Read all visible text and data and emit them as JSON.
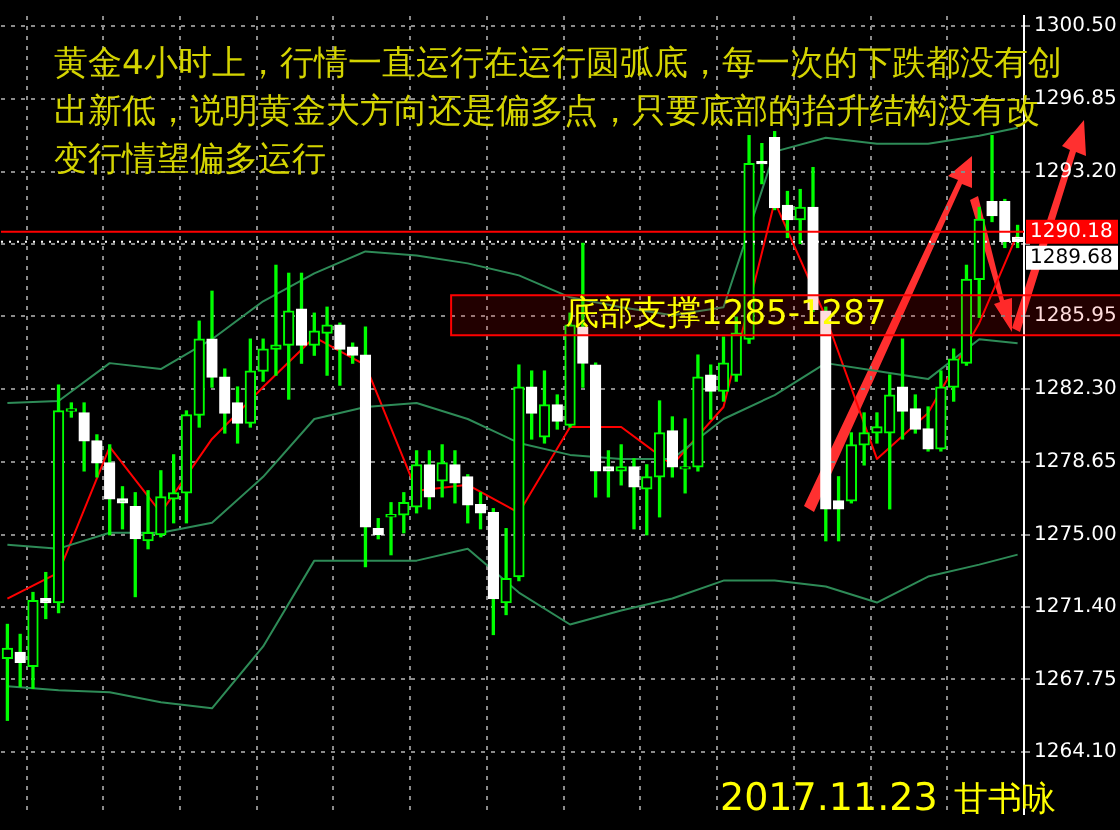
{
  "chart_data": {
    "type": "candlestick",
    "title": "黄金4小时上，行情一直运行在运行圆弧底，每一次的下跌都没有创出新低，说明黄金大方向还是偏多点，只要底部的抬升结构没有改变行情望偏多运行",
    "annotations": [
      "2017.11.23",
      "甘书咏"
    ],
    "categories": [
      null,
      null,
      null,
      null,
      null,
      null,
      null,
      null,
      null,
      null,
      null,
      null,
      null,
      null,
      null,
      null,
      null,
      null,
      null,
      null,
      null,
      null,
      null,
      null,
      null,
      null,
      null,
      null,
      null,
      null,
      null,
      null,
      null,
      null,
      null,
      null,
      null,
      null,
      null,
      null,
      null,
      null,
      null,
      null,
      null,
      null,
      null,
      null,
      null,
      null,
      null,
      null,
      null,
      null,
      null,
      null,
      null,
      null,
      null,
      null,
      null,
      null,
      null,
      null,
      null,
      null,
      null,
      null,
      null,
      null,
      null,
      null,
      null,
      null,
      null,
      null,
      null,
      null,
      null,
      null
    ],
    "color": "#00ff00",
    "colors": [
      "#00ff00",
      "#ffffff",
      "#00ff00",
      "#ffffff",
      "#00ff00",
      "#00ff00",
      "#ffffff",
      "#ffffff",
      "#ffffff",
      "#ffffff",
      "#ffffff",
      "#00ff00",
      "#00ff00",
      "#00ff00",
      "#00ff00",
      "#00ff00",
      "#ffffff",
      "#ffffff",
      "#ffffff",
      "#00ff00",
      "#00ff00",
      "#00ff00",
      "#00ff00",
      "#ffffff",
      "#00ff00",
      "#00ff00",
      "#ffffff",
      "#ffffff",
      "#ffffff",
      "#ffffff",
      "#00ff00",
      "#00ff00",
      "#00ff00",
      "#ffffff",
      "#00ff00",
      "#ffffff",
      "#ffffff",
      "#ffffff",
      "#ffffff",
      "#00ff00",
      "#00ff00",
      "#ffffff",
      "#00ff00",
      "#ffffff",
      "#00ff00",
      "#ffffff",
      "#ffffff",
      "#ffffff",
      "#00ff00",
      "#ffffff",
      "#00ff00",
      "#00ff00",
      "#ffffff",
      "#00ff00",
      "#00ff00",
      "#ffffff",
      "#00ff00",
      "#00ff00",
      "#00ff00",
      "#ffffff",
      "#ffffff",
      "#ffffff",
      "#00ff00",
      "#ffffff",
      "#ffffff",
      "#ffffff",
      "#00ff00",
      "#00ff00",
      "#00ff00",
      "#00ff00",
      "#ffffff",
      "#ffffff",
      "#ffffff",
      "#00ff00",
      "#00ff00",
      "#00ff00",
      "#00ff00",
      "#ffffff",
      "#ffffff",
      "#ffffff"
    ],
    "ohlc": [
      [
        1268.8,
        1270.5,
        1265.7,
        1269.3
      ],
      [
        1269.1,
        1270.0,
        1267.4,
        1268.6
      ],
      [
        1268.4,
        1272.1,
        1267.3,
        1271.7
      ],
      [
        1271.8,
        1273.1,
        1270.8,
        1271.6
      ],
      [
        1271.6,
        1282.5,
        1271.1,
        1281.2
      ],
      [
        1281.2,
        1281.6,
        1280.9,
        1281.3
      ],
      [
        1281.1,
        1281.6,
        1278.2,
        1279.7
      ],
      [
        1279.7,
        1280.0,
        1277.9,
        1278.6
      ],
      [
        1278.6,
        1279.5,
        1275.0,
        1276.8
      ],
      [
        1276.8,
        1277.4,
        1275.3,
        1276.6
      ],
      [
        1276.4,
        1277.1,
        1271.9,
        1274.8
      ],
      [
        1274.7,
        1277.2,
        1274.3,
        1275.1
      ],
      [
        1275.0,
        1278.2,
        1274.9,
        1276.9
      ],
      [
        1276.8,
        1279.0,
        1275.6,
        1277.1
      ],
      [
        1277.1,
        1281.2,
        1275.6,
        1281.0
      ],
      [
        1281.0,
        1285.7,
        1280.4,
        1284.8
      ],
      [
        1284.8,
        1287.2,
        1282.4,
        1282.9
      ],
      [
        1282.9,
        1283.3,
        1280.1,
        1281.1
      ],
      [
        1281.6,
        1282.4,
        1279.6,
        1280.6
      ],
      [
        1280.6,
        1284.8,
        1280.4,
        1283.2
      ],
      [
        1283.2,
        1284.8,
        1282.7,
        1284.3
      ],
      [
        1284.3,
        1288.5,
        1283.0,
        1284.5
      ],
      [
        1284.5,
        1288.1,
        1281.8,
        1286.2
      ],
      [
        1286.3,
        1288.1,
        1283.6,
        1284.5
      ],
      [
        1284.5,
        1286.1,
        1284.0,
        1285.2
      ],
      [
        1285.1,
        1286.4,
        1283.0,
        1285.5
      ],
      [
        1285.5,
        1285.6,
        1282.5,
        1284.3
      ],
      [
        1284.4,
        1284.6,
        1283.6,
        1284.0
      ],
      [
        1284.0,
        1285.4,
        1273.4,
        1275.4
      ],
      [
        1275.3,
        1275.8,
        1274.8,
        1275.0
      ],
      [
        1275.9,
        1276.6,
        1274.0,
        1276.0
      ],
      [
        1276.0,
        1277.1,
        1275.1,
        1276.6
      ],
      [
        1276.4,
        1279.2,
        1276.1,
        1278.5
      ],
      [
        1278.5,
        1279.2,
        1276.3,
        1276.9
      ],
      [
        1277.7,
        1279.5,
        1276.9,
        1278.6
      ],
      [
        1278.5,
        1279.2,
        1276.6,
        1277.6
      ],
      [
        1277.9,
        1278.0,
        1275.6,
        1276.5
      ],
      [
        1276.5,
        1277.1,
        1275.3,
        1276.1
      ],
      [
        1276.1,
        1276.3,
        1270.0,
        1271.8
      ],
      [
        1271.6,
        1275.3,
        1271.0,
        1272.8
      ],
      [
        1272.9,
        1283.5,
        1272.7,
        1282.4
      ],
      [
        1282.4,
        1283.2,
        1279.8,
        1281.1
      ],
      [
        1279.9,
        1283.2,
        1279.6,
        1281.5
      ],
      [
        1281.5,
        1282.0,
        1280.3,
        1280.7
      ],
      [
        1280.5,
        1286.1,
        1280.4,
        1285.5
      ],
      [
        1285.4,
        1289.6,
        1282.4,
        1283.6
      ],
      [
        1283.5,
        1283.6,
        1276.9,
        1278.2
      ],
      [
        1278.4,
        1279.2,
        1276.9,
        1278.2
      ],
      [
        1278.2,
        1279.5,
        1277.5,
        1278.4
      ],
      [
        1278.4,
        1278.8,
        1275.3,
        1277.4
      ],
      [
        1277.3,
        1278.5,
        1275.0,
        1277.9
      ],
      [
        1277.9,
        1281.7,
        1275.9,
        1280.1
      ],
      [
        1280.2,
        1280.9,
        1277.9,
        1278.4
      ],
      [
        1278.3,
        1280.8,
        1277.1,
        1278.4
      ],
      [
        1278.4,
        1284.0,
        1278.2,
        1282.9
      ],
      [
        1283.0,
        1283.5,
        1280.8,
        1282.2
      ],
      [
        1282.2,
        1284.9,
        1281.7,
        1283.6
      ],
      [
        1283.0,
        1285.9,
        1282.7,
        1285.1
      ],
      [
        1284.8,
        1295.0,
        1284.6,
        1293.6
      ],
      [
        1293.7,
        1294.6,
        1292.6,
        1293.6
      ],
      [
        1294.9,
        1295.2,
        1291.3,
        1291.4
      ],
      [
        1291.5,
        1292.2,
        1289.9,
        1290.8
      ],
      [
        1290.8,
        1292.3,
        1289.6,
        1291.4
      ],
      [
        1291.4,
        1293.4,
        1286.2,
        1286.3
      ],
      [
        1286.2,
        1286.4,
        1274.7,
        1276.3
      ],
      [
        1276.7,
        1277.9,
        1274.7,
        1276.3
      ],
      [
        1276.7,
        1280.1,
        1276.6,
        1279.5
      ],
      [
        1279.5,
        1281.1,
        1278.5,
        1280.1
      ],
      [
        1280.1,
        1281.1,
        1279.6,
        1280.4
      ],
      [
        1280.1,
        1283.0,
        1276.3,
        1282.0
      ],
      [
        1282.4,
        1284.8,
        1279.8,
        1281.2
      ],
      [
        1281.3,
        1282.0,
        1280.1,
        1280.3
      ],
      [
        1280.3,
        1281.4,
        1279.2,
        1279.3
      ],
      [
        1279.3,
        1283.2,
        1279.2,
        1282.4
      ],
      [
        1282.4,
        1284.3,
        1281.7,
        1283.8
      ],
      [
        1283.6,
        1288.5,
        1283.5,
        1287.8
      ],
      [
        1287.8,
        1291.4,
        1285.9,
        1290.8
      ],
      [
        1291.7,
        1295.0,
        1290.7,
        1291.0
      ],
      [
        1291.7,
        1291.8,
        1289.4,
        1289.7
      ],
      [
        1289.9,
        1290.5,
        1289.4,
        1289.7
      ]
    ],
    "series": [
      {
        "type": "line",
        "color": "#2e8b57",
        "values": [
          1281.6,
          null,
          null,
          null,
          1281.7,
          null,
          null,
          null,
          1283.6,
          null,
          null,
          null,
          1283.3,
          null,
          null,
          null,
          1284.8,
          null,
          null,
          null,
          1286.7,
          null,
          null,
          null,
          1288.1,
          null,
          null,
          null,
          1289.2,
          null,
          null,
          null,
          1289.0,
          null,
          null,
          null,
          1288.6,
          null,
          null,
          null,
          1288.0,
          null,
          null,
          null,
          1286.9,
          null,
          null,
          null,
          1286.4,
          null,
          null,
          null,
          1286.0,
          null,
          null,
          null,
          1286.4,
          null,
          null,
          null,
          1294.2,
          null,
          null,
          null,
          1294.9,
          null,
          null,
          null,
          1294.6,
          null,
          null,
          null,
          1294.6,
          null,
          null,
          null,
          1295.0,
          null,
          null,
          1295.4
        ]
      },
      {
        "type": "line",
        "color": "#2e8b57",
        "values": [
          1274.5,
          null,
          null,
          null,
          1274.3,
          null,
          null,
          null,
          1275.1,
          null,
          null,
          null,
          1275.1,
          null,
          null,
          null,
          1275.6,
          null,
          null,
          null,
          1277.9,
          null,
          null,
          null,
          1280.8,
          null,
          null,
          null,
          1281.4,
          null,
          null,
          null,
          1281.6,
          null,
          null,
          null,
          1280.8,
          null,
          null,
          null,
          1279.6,
          null,
          null,
          null,
          1279.0,
          null,
          null,
          null,
          1278.8,
          null,
          null,
          null,
          1278.8,
          null,
          null,
          null,
          1280.8,
          null,
          null,
          null,
          1282.0,
          null,
          null,
          null,
          1283.6,
          null,
          null,
          null,
          1283.2,
          null,
          null,
          null,
          1282.8,
          null,
          null,
          null,
          1284.8,
          null,
          null,
          1284.6
        ]
      },
      {
        "type": "line",
        "color": "#2e8b57",
        "values": [
          1267.4,
          null,
          null,
          null,
          1267.2,
          null,
          null,
          null,
          1267.1,
          null,
          null,
          null,
          1266.6,
          null,
          null,
          null,
          1266.3,
          null,
          null,
          null,
          1269.4,
          null,
          null,
          null,
          1273.7,
          null,
          null,
          null,
          1273.7,
          null,
          null,
          null,
          1273.7,
          null,
          null,
          null,
          1274.3,
          null,
          null,
          null,
          1272.1,
          null,
          null,
          null,
          1270.5,
          null,
          null,
          null,
          1271.2,
          null,
          null,
          null,
          1271.8,
          null,
          null,
          null,
          1272.7,
          null,
          null,
          null,
          1272.7,
          null,
          null,
          null,
          1272.4,
          null,
          null,
          null,
          1271.6,
          null,
          null,
          null,
          1272.9,
          null,
          null,
          null,
          1273.5,
          null,
          null,
          1274.0
        ]
      },
      {
        "type": "line",
        "color": "#ff0000",
        "values": [
          1271.8,
          null,
          null,
          null,
          1273.1,
          null,
          null,
          null,
          1279.4,
          null,
          null,
          null,
          1276.1,
          null,
          null,
          null,
          1279.8,
          null,
          null,
          null,
          1282.4,
          null,
          null,
          null,
          1284.9,
          null,
          null,
          null,
          1283.5,
          null,
          null,
          null,
          1277.2,
          null,
          null,
          null,
          1277.5,
          null,
          null,
          null,
          1276.1,
          null,
          null,
          null,
          1280.4,
          null,
          null,
          null,
          1280.4,
          null,
          null,
          null,
          1278.5,
          null,
          null,
          null,
          1281.4,
          null,
          null,
          null,
          1291.7,
          null,
          null,
          null,
          1285.9,
          null,
          null,
          null,
          1278.8,
          null,
          null,
          null,
          1281.1,
          null,
          null,
          null,
          1285.6,
          null,
          null,
          1290.1
        ]
      }
    ],
    "ylim": [
      1261.0,
      1301.0
    ],
    "yticks": [
      {
        "value": 1300.5,
        "label": "1300.50"
      },
      {
        "value": 1296.85,
        "label": "1296.85"
      },
      {
        "value": 1293.2,
        "label": "1293.20"
      },
      {
        "value": 1289.55,
        "label": null
      },
      {
        "value": 1285.95,
        "label": "1285.95"
      },
      {
        "value": 1282.3,
        "label": "1282.30"
      },
      {
        "value": 1278.65,
        "label": "1278.65"
      },
      {
        "value": 1275.0,
        "label": "1275.00"
      },
      {
        "value": 1271.4,
        "label": "1271.40"
      },
      {
        "value": 1267.75,
        "label": "1267.75"
      },
      {
        "value": 1264.1,
        "label": "1264.10"
      }
    ],
    "ref_lines": [
      {
        "axis": "y",
        "value": 1290.18,
        "label": "1290.18",
        "color": "#ff0000"
      },
      {
        "axis": "y",
        "value": 1289.68,
        "label": "1289.68",
        "color": "#ffffff",
        "line_style": "dotted"
      }
    ],
    "bands": [
      {
        "axis": "y",
        "from": 1285,
        "to": 1287,
        "label": "底部支撑1285-1287",
        "color": "#ff0000"
      }
    ],
    "grid": true,
    "tick_labels": "y"
  }
}
